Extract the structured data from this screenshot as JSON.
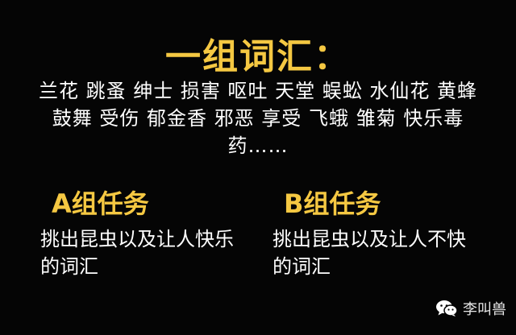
{
  "title": "一组词汇：",
  "vocabulary": "兰花 跳蚤 绅士 损害 呕吐 天堂 蜈蚣 水仙花 黄蜂 鼓舞 受伤 郁金香 邪恶 享受 飞蛾 雏菊 快乐毒药……",
  "task_a": {
    "title": "A组任务",
    "body": "挑出昆虫以及让人快乐的词汇"
  },
  "task_b": {
    "title": "B组任务",
    "body": "挑出昆虫以及让人不快的词汇"
  },
  "watermark": {
    "icon": "wechat-icon",
    "text": "李叫兽"
  },
  "colors": {
    "background": "#050505",
    "accent": "#f5c842",
    "text": "#ffffff"
  }
}
